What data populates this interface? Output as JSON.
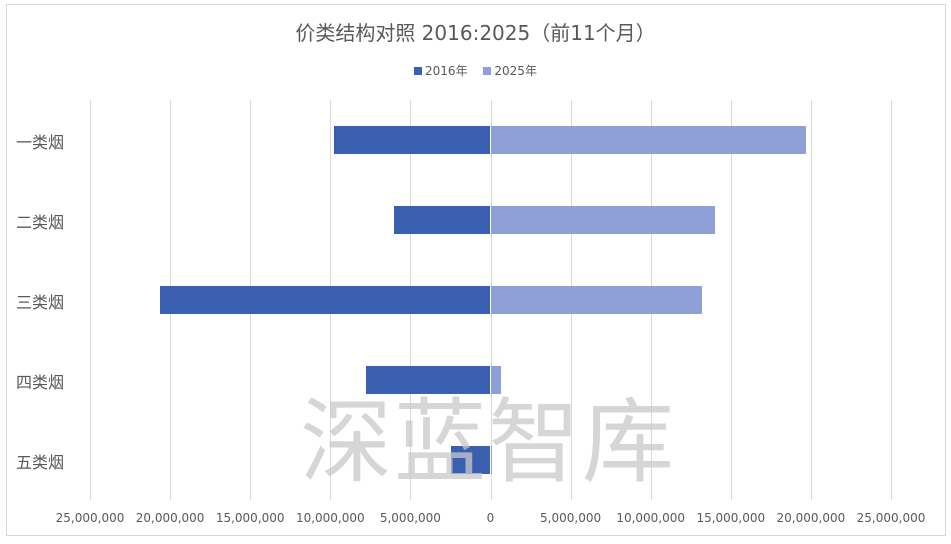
{
  "chart_data": {
    "type": "bar",
    "orientation": "horizontal",
    "title": "价类结构对照 2016:2025（前11个月）",
    "categories": [
      "一类烟",
      "二类烟",
      "三类烟",
      "四类烟",
      "五类烟"
    ],
    "series": [
      {
        "name": "2016年",
        "color": "#3a5fb0",
        "values": [
          -9800000,
          -6000000,
          -20600000,
          -7750000,
          -2450000
        ]
      },
      {
        "name": "2025年",
        "color": "#8fa0d8",
        "values": [
          19700000,
          14000000,
          13200000,
          650000,
          100000
        ]
      }
    ],
    "xlabel": "",
    "ylabel": "",
    "xlim": [
      -25000000,
      25000000
    ],
    "x_ticks": [
      "25,000,000",
      "20,000,000",
      "15,000,000",
      "10,000,000",
      "5,000,000",
      "0",
      "5,000,000",
      "10,000,000",
      "15,000,000",
      "20,000,000",
      "25,000,000"
    ],
    "grid": true,
    "legend_position": "top"
  },
  "watermark": "深蓝智库"
}
